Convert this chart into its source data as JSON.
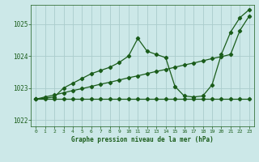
{
  "title": "Graphe pression niveau de la mer (hPa)",
  "background_color": "#cce8e8",
  "grid_color": "#aacccc",
  "line_color": "#1a5c1a",
  "xlim": [
    -0.5,
    23.5
  ],
  "ylim": [
    1021.8,
    1025.6
  ],
  "yticks": [
    1022,
    1023,
    1024,
    1025
  ],
  "xticks": [
    0,
    1,
    2,
    3,
    4,
    5,
    6,
    7,
    8,
    9,
    10,
    11,
    12,
    13,
    14,
    15,
    16,
    17,
    18,
    19,
    20,
    21,
    22,
    23
  ],
  "series1_x": [
    0,
    1,
    2,
    3,
    4,
    5,
    6,
    7,
    8,
    9,
    10,
    11,
    12,
    13,
    14,
    15,
    16,
    17,
    18,
    19,
    20,
    21,
    22,
    23
  ],
  "series1_y": [
    1022.65,
    1022.72,
    1022.78,
    1022.85,
    1022.92,
    1022.98,
    1023.05,
    1023.12,
    1023.18,
    1023.25,
    1023.32,
    1023.38,
    1023.45,
    1023.52,
    1023.58,
    1023.65,
    1023.72,
    1023.78,
    1023.85,
    1023.92,
    1023.98,
    1024.05,
    1024.8,
    1025.25
  ],
  "series2_x": [
    0,
    1,
    2,
    3,
    4,
    5,
    6,
    7,
    8,
    9,
    10,
    11,
    12,
    13,
    14,
    15,
    16,
    17,
    18,
    19,
    20,
    21,
    22,
    23
  ],
  "series2_y": [
    1022.65,
    1022.65,
    1022.65,
    1022.65,
    1022.65,
    1022.65,
    1022.65,
    1022.65,
    1022.65,
    1022.65,
    1022.65,
    1022.65,
    1022.65,
    1022.65,
    1022.65,
    1022.65,
    1022.65,
    1022.65,
    1022.65,
    1022.65,
    1022.65,
    1022.65,
    1022.65,
    1022.65
  ],
  "series3_x": [
    0,
    1,
    2,
    3,
    4,
    5,
    6,
    7,
    8,
    9,
    10,
    11,
    12,
    13,
    14,
    15,
    16,
    17,
    18,
    19,
    20,
    21,
    22,
    23
  ],
  "series3_y": [
    1022.65,
    1022.68,
    1022.72,
    1023.0,
    1023.15,
    1023.3,
    1023.45,
    1023.55,
    1023.65,
    1023.8,
    1024.0,
    1024.55,
    1024.15,
    1024.05,
    1023.95,
    1023.05,
    1022.75,
    1022.72,
    1022.75,
    1023.1,
    1024.05,
    1024.75,
    1025.2,
    1025.45
  ]
}
